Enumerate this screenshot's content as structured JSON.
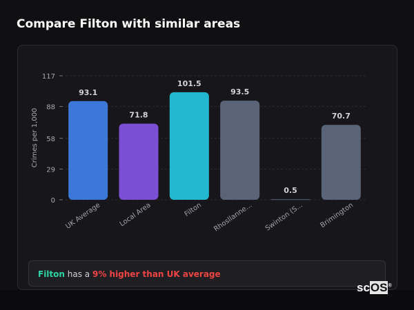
{
  "title": "Compare Filton with similar areas",
  "chart_data": {
    "type": "bar",
    "title": "",
    "xlabel": "",
    "ylabel": "Crimes per 1,000",
    "ylim": [
      0,
      117
    ],
    "yticks": [
      0,
      29,
      58,
      88,
      117
    ],
    "grid": true,
    "categories": [
      "UK Average",
      "Local Area",
      "Filton",
      "Rhosllanne...",
      "Swinton (S...",
      "Brimington"
    ],
    "values": [
      93.1,
      71.8,
      101.5,
      93.5,
      0.5,
      70.7
    ],
    "data_labels": [
      "93.1",
      "71.8",
      "101.5",
      "93.5",
      "0.5",
      "70.7"
    ],
    "colors": [
      "#3b78d8",
      "#7b4fd3",
      "#22b8cf",
      "#5a6478",
      "#5a6478",
      "#5a6478"
    ]
  },
  "summary": {
    "place": "Filton",
    "middle": " has a ",
    "difference": "9% higher than UK average"
  },
  "logo": {
    "text_a": "sc",
    "text_b": "OS",
    "mark": "®"
  }
}
